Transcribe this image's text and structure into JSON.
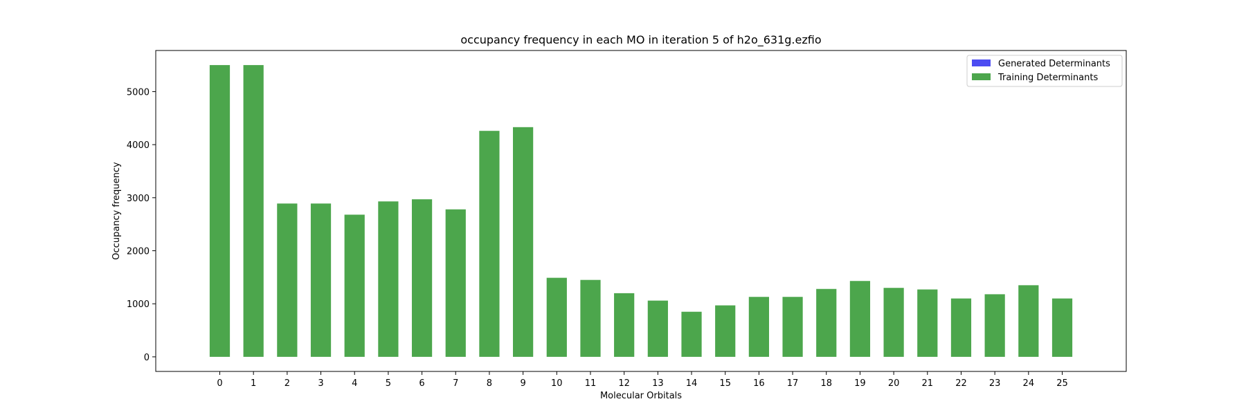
{
  "chart_data": {
    "type": "bar",
    "title": "occupancy frequency in each MO in iteration 5 of h2o_631g.ezfio",
    "xlabel": "Molecular Orbitals",
    "ylabel": "Occupancy frequency",
    "categories": [
      "0",
      "1",
      "2",
      "3",
      "4",
      "5",
      "6",
      "7",
      "8",
      "9",
      "10",
      "11",
      "12",
      "13",
      "14",
      "15",
      "16",
      "17",
      "18",
      "19",
      "20",
      "21",
      "22",
      "23",
      "24",
      "25"
    ],
    "xlim": [
      -1.9,
      26.9
    ],
    "ylim": [
      -275,
      5775
    ],
    "yticks": [
      0,
      1000,
      2000,
      3000,
      4000,
      5000
    ],
    "grid": false,
    "legend_position": "top-right",
    "series": [
      {
        "name": "Generated Determinants",
        "color": "#4c4cf2",
        "values": [
          0,
          0,
          0,
          0,
          0,
          0,
          0,
          0,
          0,
          0,
          0,
          0,
          0,
          0,
          0,
          0,
          0,
          0,
          0,
          0,
          0,
          0,
          0,
          0,
          0,
          0
        ]
      },
      {
        "name": "Training Determinants",
        "color": "#4ca64c",
        "values": [
          5500,
          5500,
          2890,
          2890,
          2680,
          2930,
          2970,
          2780,
          4260,
          4330,
          1490,
          1450,
          1200,
          1060,
          850,
          970,
          1130,
          1130,
          1280,
          1430,
          1300,
          1270,
          1100,
          1180,
          1350,
          1100
        ]
      }
    ]
  }
}
